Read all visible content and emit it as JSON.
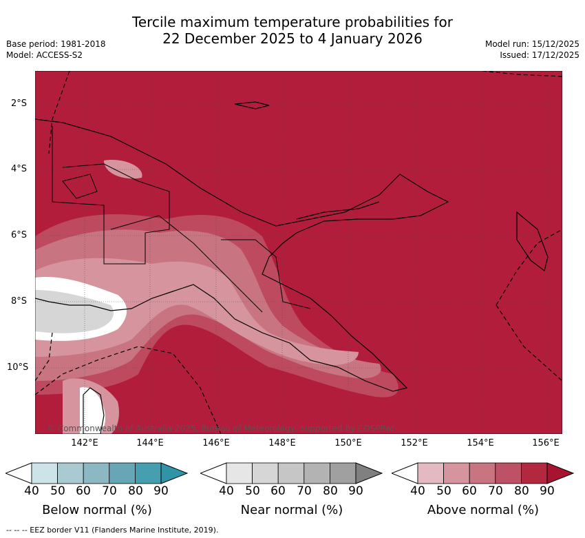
{
  "title": {
    "line1": "Tercile maximum temperature probabilities for",
    "line2": "22 December 2025 to 4 January 2026"
  },
  "meta": {
    "base_period": "Base period: 1981-2018",
    "model": "Model: ACCESS-S2",
    "model_run": "Model run: 15/12/2025",
    "issued": "Issued: 17/12/2025"
  },
  "map": {
    "background_color": "#b11d3b",
    "lat_ticks": [
      "2°S",
      "4°S",
      "6°S",
      "8°S",
      "10°S"
    ],
    "lon_ticks": [
      "142°E",
      "144°E",
      "146°E",
      "148°E",
      "150°E",
      "152°E",
      "154°E",
      "156°E"
    ],
    "copyright": "© Commonwealth of Australia 2025, Bureau of Meteorology, supported by COSPPac"
  },
  "legends": [
    {
      "label": "Below normal (%)",
      "ticks": [
        "40",
        "50",
        "60",
        "70",
        "80",
        "90"
      ],
      "colors": [
        "#ffffff",
        "#cde3e8",
        "#a9cad1",
        "#8bb8c2",
        "#67a7b5",
        "#459faf",
        "#2f94a6"
      ]
    },
    {
      "label": "Near normal (%)",
      "ticks": [
        "40",
        "50",
        "60",
        "70",
        "80",
        "90"
      ],
      "colors": [
        "#ffffff",
        "#e6e6e6",
        "#d6d6d6",
        "#c6c6c6",
        "#b3b3b3",
        "#a0a0a0",
        "#808080"
      ]
    },
    {
      "label": "Above normal (%)",
      "ticks": [
        "40",
        "50",
        "60",
        "70",
        "80",
        "90"
      ],
      "colors": [
        "#ffffff",
        "#e3bac2",
        "#d5949e",
        "#c87581",
        "#bd5266",
        "#b1283f",
        "#a8142f"
      ]
    }
  ],
  "footnote": "--  --  -- EEZ border V11 (Flanders Marine Institute, 2019)."
}
